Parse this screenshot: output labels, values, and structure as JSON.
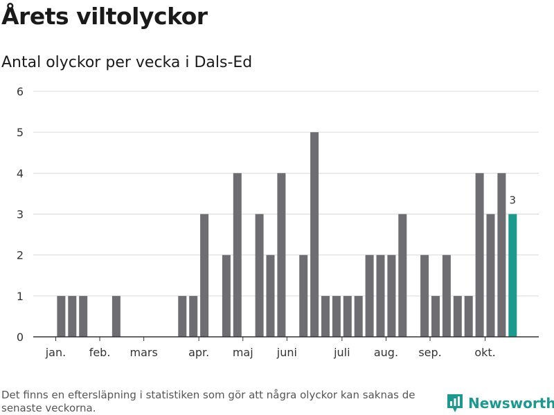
{
  "title": "Årets viltolyckor",
  "subtitle": "Antal olyckor per vecka i Dals-Ed",
  "footnote": "Det finns en eftersläpning i statistiken som gör att några olyckor kan saknas de senaste veckorna.",
  "brand": "Newsworthy",
  "colors": {
    "bar": "#6d6d72",
    "highlight": "#1a9a8e",
    "grid": "#d9d9d9",
    "axis": "#333333"
  },
  "chart_data": {
    "type": "bar",
    "ylim": [
      0,
      6
    ],
    "yticks": [
      0,
      1,
      2,
      3,
      4,
      5,
      6
    ],
    "grid": true,
    "month_labels": [
      {
        "label": "jan.",
        "week": 1.5
      },
      {
        "label": "feb.",
        "week": 5.5
      },
      {
        "label": "mars",
        "week": 9.5
      },
      {
        "label": "apr.",
        "week": 14.5
      },
      {
        "label": "maj",
        "week": 18.5
      },
      {
        "label": "juni",
        "week": 22.5
      },
      {
        "label": "juli",
        "week": 27.5
      },
      {
        "label": "aug.",
        "week": 31.5
      },
      {
        "label": "sep.",
        "week": 35.5
      },
      {
        "label": "okt.",
        "week": 40.5
      }
    ],
    "weeks": [
      1,
      2,
      3,
      4,
      5,
      6,
      7,
      8,
      9,
      10,
      11,
      12,
      13,
      14,
      15,
      16,
      17,
      18,
      19,
      20,
      21,
      22,
      23,
      24,
      25,
      26,
      27,
      28,
      29,
      30,
      31,
      32,
      33,
      34,
      35,
      36,
      37,
      38,
      39,
      40,
      41,
      42
    ],
    "values": [
      0,
      1,
      1,
      1,
      0,
      0,
      1,
      0,
      0,
      0,
      0,
      0,
      1,
      1,
      3,
      0,
      2,
      4,
      0,
      3,
      2,
      4,
      0,
      2,
      5,
      1,
      1,
      1,
      1,
      2,
      2,
      2,
      3,
      0,
      2,
      1,
      2,
      1,
      1,
      4,
      3,
      4
    ],
    "highlight": {
      "week": 43,
      "value": 3,
      "label": "3"
    }
  }
}
